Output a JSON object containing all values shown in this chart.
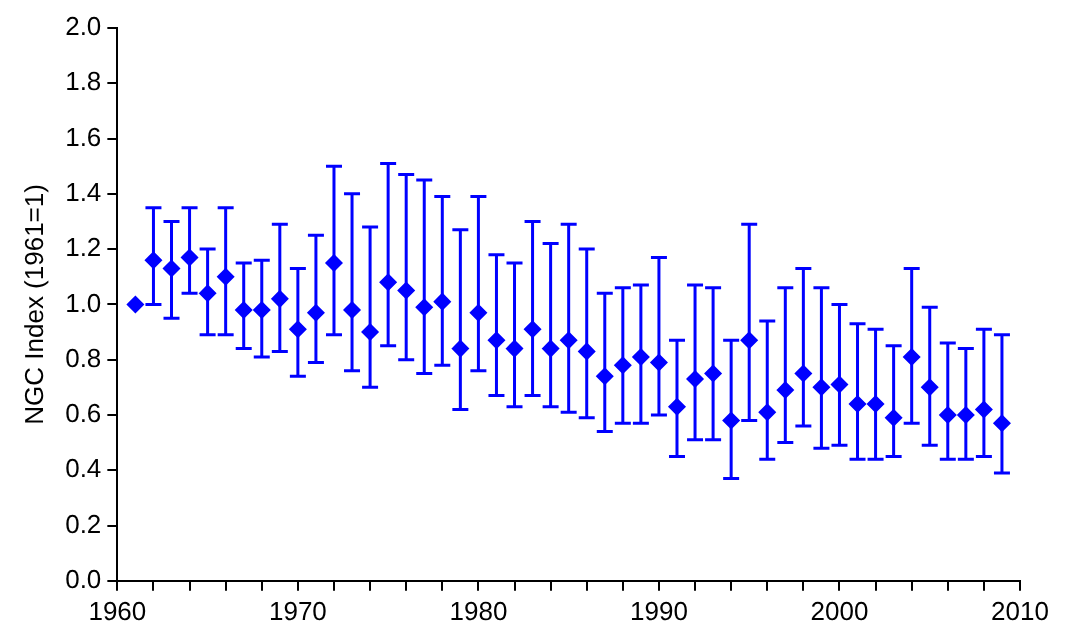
{
  "chart_data": {
    "type": "scatter",
    "ylabel": "NGC Index (1961=1)",
    "marker": "diamond",
    "grid": false,
    "legend": false,
    "x": [
      1961,
      1962,
      1963,
      1964,
      1965,
      1966,
      1967,
      1968,
      1969,
      1970,
      1971,
      1972,
      1973,
      1974,
      1975,
      1976,
      1977,
      1978,
      1979,
      1980,
      1981,
      1982,
      1983,
      1984,
      1985,
      1986,
      1987,
      1988,
      1989,
      1990,
      1991,
      1992,
      1993,
      1994,
      1995,
      1996,
      1997,
      1998,
      1999,
      2000,
      2001,
      2002,
      2003,
      2004,
      2005,
      2006,
      2007,
      2008,
      2009
    ],
    "series": [
      {
        "color": "#0000ff",
        "values": [
          1.0,
          1.16,
          1.13,
          1.17,
          1.04,
          1.1,
          0.98,
          0.98,
          1.02,
          0.91,
          0.97,
          1.15,
          0.98,
          0.9,
          1.08,
          1.05,
          0.99,
          1.01,
          0.84,
          0.97,
          0.87,
          0.84,
          0.91,
          0.84,
          0.87,
          0.83,
          0.74,
          0.78,
          0.81,
          0.79,
          0.63,
          0.73,
          0.75,
          0.58,
          0.87,
          0.61,
          0.69,
          0.75,
          0.7,
          0.71,
          0.64,
          0.64,
          0.59,
          0.81,
          0.7,
          0.6,
          0.6,
          0.62,
          0.57
        ],
        "errors": [
          null,
          [
            1.0,
            1.35
          ],
          [
            0.95,
            1.3
          ],
          [
            1.04,
            1.35
          ],
          [
            0.89,
            1.2
          ],
          [
            0.89,
            1.35
          ],
          [
            0.84,
            1.15
          ],
          [
            0.81,
            1.16
          ],
          [
            0.83,
            1.29
          ],
          [
            0.74,
            1.13
          ],
          [
            0.79,
            1.25
          ],
          [
            0.89,
            1.5
          ],
          [
            0.76,
            1.4
          ],
          [
            0.7,
            1.28
          ],
          [
            0.85,
            1.51
          ],
          [
            0.8,
            1.47
          ],
          [
            0.75,
            1.45
          ],
          [
            0.78,
            1.39
          ],
          [
            0.62,
            1.27
          ],
          [
            0.76,
            1.39
          ],
          [
            0.67,
            1.18
          ],
          [
            0.63,
            1.15
          ],
          [
            0.67,
            1.3
          ],
          [
            0.63,
            1.22
          ],
          [
            0.61,
            1.29
          ],
          [
            0.59,
            1.2
          ],
          [
            0.54,
            1.04
          ],
          [
            0.57,
            1.06
          ],
          [
            0.57,
            1.07
          ],
          [
            0.6,
            1.17
          ],
          [
            0.45,
            0.87
          ],
          [
            0.51,
            1.07
          ],
          [
            0.51,
            1.06
          ],
          [
            0.37,
            0.87
          ],
          [
            0.58,
            1.29
          ],
          [
            0.44,
            0.94
          ],
          [
            0.5,
            1.06
          ],
          [
            0.56,
            1.13
          ],
          [
            0.48,
            1.06
          ],
          [
            0.49,
            1.0
          ],
          [
            0.44,
            0.93
          ],
          [
            0.44,
            0.91
          ],
          [
            0.45,
            0.85
          ],
          [
            0.57,
            1.13
          ],
          [
            0.49,
            0.99
          ],
          [
            0.44,
            0.86
          ],
          [
            0.44,
            0.84
          ],
          [
            0.45,
            0.91
          ],
          [
            0.39,
            0.89
          ]
        ]
      }
    ],
    "xlim": [
      1960,
      2010
    ],
    "xticks": [
      1960,
      {
        "value": 1962,
        "label": null
      },
      {
        "value": 1964,
        "label": null
      },
      {
        "value": 1966,
        "label": null
      },
      {
        "value": 1968,
        "label": null
      },
      1970,
      {
        "value": 1972,
        "label": null
      },
      {
        "value": 1974,
        "label": null
      },
      {
        "value": 1976,
        "label": null
      },
      {
        "value": 1978,
        "label": null
      },
      1980,
      {
        "value": 1982,
        "label": null
      },
      {
        "value": 1984,
        "label": null
      },
      {
        "value": 1986,
        "label": null
      },
      {
        "value": 1988,
        "label": null
      },
      1990,
      {
        "value": 1992,
        "label": null
      },
      {
        "value": 1994,
        "label": null
      },
      {
        "value": 1996,
        "label": null
      },
      {
        "value": 1998,
        "label": null
      },
      2000,
      {
        "value": 2002,
        "label": null
      },
      {
        "value": 2004,
        "label": null
      },
      {
        "value": 2006,
        "label": null
      },
      {
        "value": 2008,
        "label": null
      },
      2010
    ],
    "ylim": [
      0,
      2.0
    ],
    "yticks": [
      {
        "value": 0,
        "label": "0.0"
      },
      {
        "value": 0.2,
        "label": "0.2"
      },
      {
        "value": 0.4,
        "label": "0.4"
      },
      {
        "value": 0.6,
        "label": "0.6"
      },
      {
        "value": 0.8,
        "label": "0.8"
      },
      {
        "value": 1.0,
        "label": "1.0"
      },
      {
        "value": 1.2,
        "label": "1.2"
      },
      {
        "value": 1.4,
        "label": "1.4"
      },
      {
        "value": 1.6,
        "label": "1.6"
      },
      {
        "value": 1.8,
        "label": "1.8"
      },
      {
        "value": 2.0,
        "label": "2.0"
      }
    ]
  }
}
